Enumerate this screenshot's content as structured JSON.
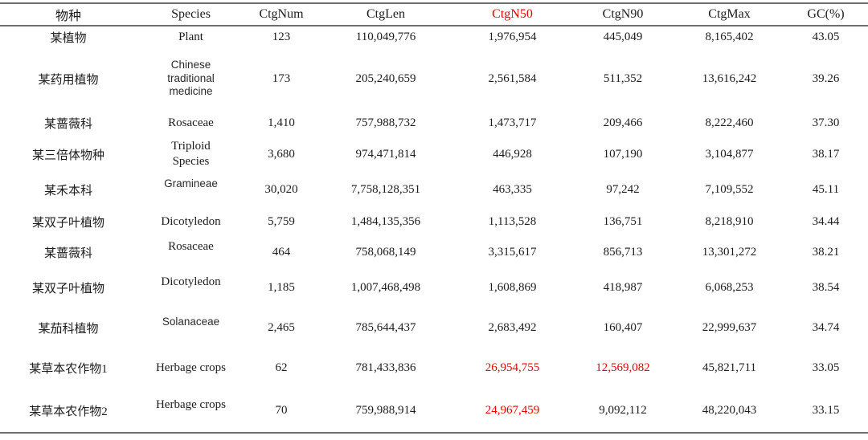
{
  "colors": {
    "highlight_red": "#e60000",
    "text": "#1c1c1c",
    "rule_gray": "#6e6e6e"
  },
  "table": {
    "columns": [
      {
        "key": "name_cn",
        "label": "物种"
      },
      {
        "key": "species",
        "label": "Species"
      },
      {
        "key": "ctg_num",
        "label": "CtgNum"
      },
      {
        "key": "ctg_len",
        "label": "CtgLen"
      },
      {
        "key": "ctg_n50",
        "label": "CtgN50",
        "highlighted": true
      },
      {
        "key": "ctg_n90",
        "label": "CtgN90"
      },
      {
        "key": "ctg_max",
        "label": "CtgMax"
      },
      {
        "key": "gc",
        "label": "GC(%)"
      }
    ],
    "rows": [
      {
        "name_cn": "某植物",
        "species": "Plant",
        "ctg_num": "123",
        "ctg_len": "110,049,776",
        "ctg_n50": "1,976,954",
        "ctg_n90": "445,049",
        "ctg_max": "8,165,402",
        "gc": "43.05"
      },
      {
        "name_cn": "某药用植物",
        "species": "Chinese\ntraditional\nmedicine",
        "ctg_num": "173",
        "ctg_len": "205,240,659",
        "ctg_n50": "2,561,584",
        "ctg_n90": "511,352",
        "ctg_max": "13,616,242",
        "gc": "39.26"
      },
      {
        "name_cn": "某蔷薇科",
        "species": "Rosaceae",
        "ctg_num": "1,410",
        "ctg_len": "757,988,732",
        "ctg_n50": "1,473,717",
        "ctg_n90": "209,466",
        "ctg_max": "8,222,460",
        "gc": "37.30"
      },
      {
        "name_cn": "某三倍体物种",
        "species": "Triploid\nSpecies",
        "ctg_num": "3,680",
        "ctg_len": "974,471,814",
        "ctg_n50": "446,928",
        "ctg_n90": "107,190",
        "ctg_max": "3,104,877",
        "gc": "38.17"
      },
      {
        "name_cn": "某禾本科",
        "species": "Gramineae",
        "ctg_num": "30,020",
        "ctg_len": "7,758,128,351",
        "ctg_n50": "463,335",
        "ctg_n90": "97,242",
        "ctg_max": "7,109,552",
        "gc": "45.11"
      },
      {
        "name_cn": "某双子叶植物",
        "species": "Dicotyledon",
        "ctg_num": "5,759",
        "ctg_len": "1,484,135,356",
        "ctg_n50": "1,113,528",
        "ctg_n90": "136,751",
        "ctg_max": "8,218,910",
        "gc": "34.44"
      },
      {
        "name_cn": "某蔷薇科",
        "species": "Rosaceae",
        "ctg_num": "464",
        "ctg_len": "758,068,149",
        "ctg_n50": "3,315,617",
        "ctg_n90": "856,713",
        "ctg_max": "13,301,272",
        "gc": "38.21"
      },
      {
        "name_cn": "某双子叶植物",
        "species": "Dicotyledon",
        "ctg_num": "1,185",
        "ctg_len": "1,007,468,498",
        "ctg_n50": "1,608,869",
        "ctg_n90": "418,987",
        "ctg_max": "6,068,253",
        "gc": "38.54"
      },
      {
        "name_cn": "某茄科植物",
        "species": "Solanaceae",
        "ctg_num": "2,465",
        "ctg_len": "785,644,437",
        "ctg_n50": "2,683,492",
        "ctg_n90": "160,407",
        "ctg_max": "22,999,637",
        "gc": "34.74"
      },
      {
        "name_cn": "某草本农作物1",
        "species": "Herbage crops",
        "ctg_num": "62",
        "ctg_len": "781,433,836",
        "ctg_n50": "26,954,755",
        "ctg_n90": "12,569,082",
        "ctg_max": "45,821,711",
        "gc": "33.05",
        "red_cells": [
          "ctg_n50",
          "ctg_n90"
        ]
      },
      {
        "name_cn": "某草本农作物2",
        "species": "Herbage crops",
        "ctg_num": "70",
        "ctg_len": "759,988,914",
        "ctg_n50": "24,967,459",
        "ctg_n90": "9,092,112",
        "ctg_max": "48,220,043",
        "gc": "33.15",
        "red_cells": [
          "ctg_n50"
        ]
      }
    ]
  }
}
